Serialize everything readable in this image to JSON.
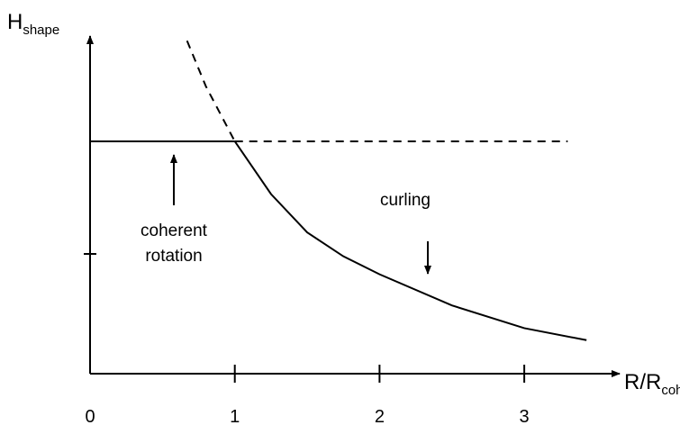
{
  "chart_data": {
    "type": "line",
    "y_label": {
      "main": "H",
      "sub": "shape"
    },
    "x_label": {
      "main": "R/R",
      "sub": "coh"
    },
    "xlim": [
      0,
      3.64
    ],
    "ylim": [
      0,
      2.82
    ],
    "xticks": [
      0,
      1,
      2,
      3
    ],
    "yticks": [
      1
    ],
    "color": "#000000",
    "series": [
      {
        "x": [
          0,
          1
        ],
        "values": [
          1.94,
          1.94
        ],
        "dashed": false
      },
      {
        "x": [
          1,
          3.3
        ],
        "values": [
          1.94,
          1.94
        ],
        "dashed": true
      },
      {
        "x": [
          0.67,
          0.8,
          1
        ],
        "values": [
          2.78,
          2.4,
          1.94
        ],
        "dashed": true
      },
      {
        "x": [
          1,
          1.25,
          1.5,
          1.75,
          2,
          2.5,
          3,
          3.43
        ],
        "values": [
          1.94,
          1.5,
          1.18,
          0.98,
          0.83,
          0.57,
          0.38,
          0.28
        ],
        "dashed": false
      }
    ],
    "annotations": [
      [
        "coherent",
        "rotation"
      ],
      [
        "curling"
      ]
    ]
  }
}
